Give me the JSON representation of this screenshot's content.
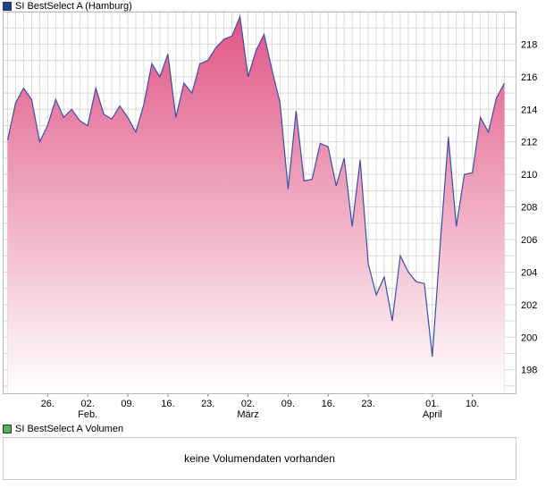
{
  "price_legend": {
    "label": "SI BestSelect A (Hamburg)",
    "color": "#1f3f99"
  },
  "volume_legend": {
    "label": "SI BestSelect A Volumen",
    "color": "#4caf50"
  },
  "volume_empty_text": "keine Volumendaten vorhanden",
  "colors": {
    "line": "#3a4fa8",
    "fill_top": "#e05585",
    "fill_bottom": "#ffffff",
    "grid": "#d9d9d9",
    "frame": "#b8b8b8"
  },
  "chart_data": {
    "type": "area",
    "title": "",
    "xlabel": "",
    "ylabel": "",
    "ylim": [
      196.5,
      220
    ],
    "yticks": [
      198,
      200,
      202,
      204,
      206,
      208,
      210,
      212,
      214,
      216,
      218
    ],
    "xlim": [
      0,
      63.5
    ],
    "x_tick_labels": [
      {
        "i": 5,
        "day": "26.",
        "month": ""
      },
      {
        "i": 10,
        "day": "02.",
        "month": "Feb."
      },
      {
        "i": 15,
        "day": "09.",
        "month": ""
      },
      {
        "i": 20,
        "day": "16.",
        "month": ""
      },
      {
        "i": 25,
        "day": "23.",
        "month": ""
      },
      {
        "i": 30,
        "day": "02.",
        "month": "März"
      },
      {
        "i": 35,
        "day": "09.",
        "month": ""
      },
      {
        "i": 40,
        "day": "16.",
        "month": ""
      },
      {
        "i": 45,
        "day": "23.",
        "month": ""
      },
      {
        "i": 53,
        "day": "01.",
        "month": "April"
      },
      {
        "i": 58,
        "day": "10.",
        "month": ""
      }
    ],
    "grid": true,
    "series": [
      {
        "values": [
          212.1,
          214.4,
          215.3,
          214.6,
          212.0,
          213.0,
          214.6,
          213.5,
          214.0,
          213.3,
          213.0,
          215.3,
          213.7,
          213.4,
          214.2,
          213.5,
          212.6,
          214.3,
          216.8,
          216.0,
          217.4,
          213.5,
          215.6,
          215.0,
          216.8,
          217.0,
          217.8,
          218.3,
          218.5,
          219.7,
          216.0,
          217.6,
          218.6,
          216.4,
          214.4,
          209.1,
          213.9,
          209.6,
          209.7,
          211.9,
          211.7,
          209.3,
          211.0,
          206.8,
          210.9,
          204.5,
          202.6,
          203.7,
          201.0,
          205.0,
          204.0,
          203.4,
          203.3,
          198.8,
          205.8,
          212.3,
          206.8,
          210.0,
          210.1,
          213.5,
          212.6,
          214.7,
          215.6
        ]
      }
    ]
  }
}
